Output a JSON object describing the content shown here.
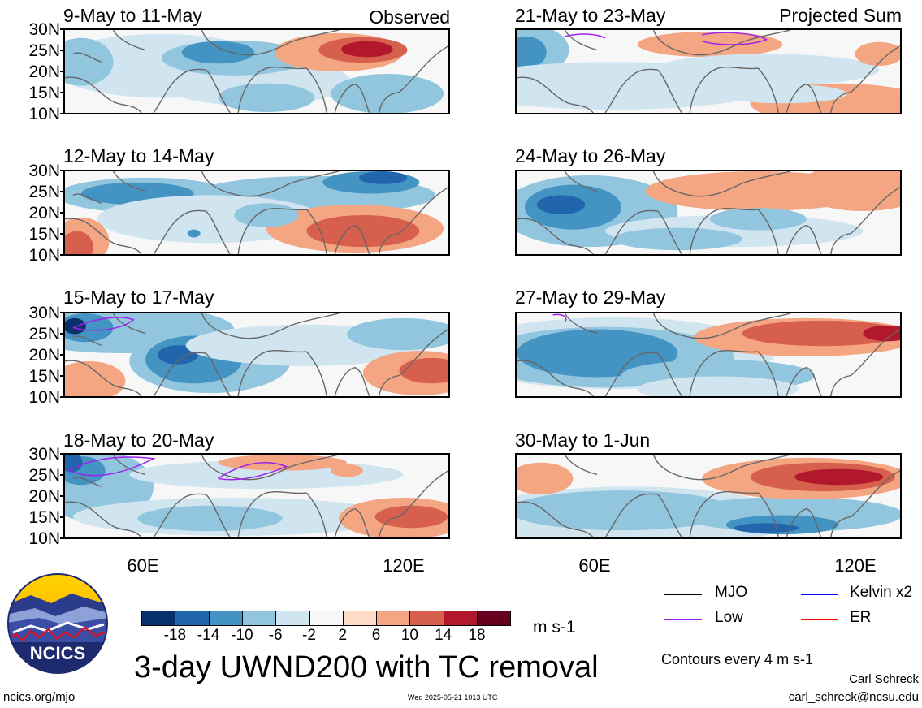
{
  "left_column": {
    "label": "Observed",
    "panels": [
      {
        "title": "9-May to 11-May",
        "pattern": "a"
      },
      {
        "title": "12-May to 14-May",
        "pattern": "b"
      },
      {
        "title": "15-May to 17-May",
        "pattern": "c"
      },
      {
        "title": "18-May to 20-May",
        "pattern": "d"
      }
    ]
  },
  "right_column": {
    "label": "Projected Sum",
    "panels": [
      {
        "title": "21-May to 23-May",
        "pattern": "e"
      },
      {
        "title": "24-May to 26-May",
        "pattern": "f"
      },
      {
        "title": "27-May to 29-May",
        "pattern": "g"
      },
      {
        "title": "30-May to 1-Jun",
        "pattern": "h"
      }
    ]
  },
  "y_ticks": [
    "30N",
    "25N",
    "20N",
    "15N",
    "10N"
  ],
  "x_ticks": [
    "60E",
    "120E"
  ],
  "colorbar": {
    "colors": [
      "#08306b",
      "#2166ac",
      "#4393c3",
      "#92c5de",
      "#d1e5f0",
      "#f7f7f7",
      "#fddbc7",
      "#f4a582",
      "#d6604d",
      "#b2182b",
      "#67001f"
    ],
    "labels": [
      "-18",
      "-14",
      "-10",
      "-6",
      "-2",
      "2",
      "6",
      "10",
      "14",
      "18"
    ],
    "units": "m s-1"
  },
  "main_title": "3-day UWND200 with TC removal",
  "legend": {
    "items": [
      {
        "label": "MJO",
        "color": "#000000"
      },
      {
        "label": "Kelvin x2",
        "color": "#0000ff"
      },
      {
        "label": "Low",
        "color": "#a020f0"
      },
      {
        "label": "ER",
        "color": "#ff0000"
      }
    ],
    "contours_note": "Contours every 4 m s-1"
  },
  "footer": {
    "website": "ncics.org/mjo",
    "timestamp": "Wed 2025-05-21 1013 UTC",
    "author": "Carl Schreck",
    "email": "carl_schreck@ncsu.edu"
  },
  "logo": {
    "text": "NCICS"
  }
}
